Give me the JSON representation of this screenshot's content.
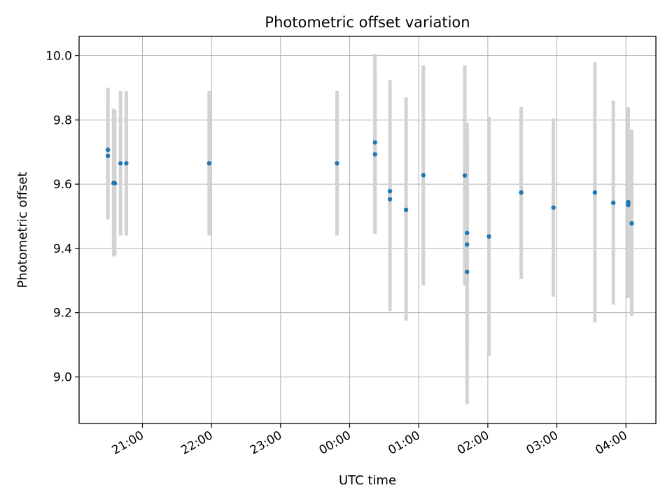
{
  "chart_data": {
    "type": "scatter",
    "title": "Photometric offset variation",
    "xlabel": "UTC time",
    "ylabel": "Photometric offset",
    "x_axis": "time",
    "xlim": [
      "20:05",
      "04:26"
    ],
    "ylim": [
      8.855,
      10.06
    ],
    "x_ticks": [
      "21:00",
      "22:00",
      "23:00",
      "00:00",
      "01:00",
      "02:00",
      "03:00",
      "04:00"
    ],
    "y_ticks": [
      "9.0",
      "9.2",
      "9.4",
      "9.6",
      "9.8",
      "10.0"
    ],
    "grid": true,
    "legend": "none",
    "series": [
      {
        "marker_color": "#1f77b4",
        "error_color": "#d3d3d3",
        "points": [
          {
            "t": "20:30",
            "y": 9.707,
            "lo": 9.51,
            "hi": 9.9
          },
          {
            "t": "20:30",
            "y": 9.688,
            "lo": 9.49,
            "hi": 9.89
          },
          {
            "t": "20:35",
            "y": 9.604,
            "lo": 9.375,
            "hi": 9.835
          },
          {
            "t": "20:36",
            "y": 9.603,
            "lo": 9.38,
            "hi": 9.83
          },
          {
            "t": "20:41",
            "y": 9.665,
            "lo": 9.44,
            "hi": 9.89
          },
          {
            "t": "20:46",
            "y": 9.665,
            "lo": 9.44,
            "hi": 9.89
          },
          {
            "t": "21:58",
            "y": 9.665,
            "lo": 9.44,
            "hi": 9.89
          },
          {
            "t": "23:49",
            "y": 9.665,
            "lo": 9.44,
            "hi": 9.89
          },
          {
            "t": "00:22",
            "y": 9.73,
            "lo": 9.46,
            "hi": 10.005
          },
          {
            "t": "00:22",
            "y": 9.693,
            "lo": 9.445,
            "hi": 9.94
          },
          {
            "t": "00:35",
            "y": 9.578,
            "lo": 9.23,
            "hi": 9.925
          },
          {
            "t": "00:35",
            "y": 9.553,
            "lo": 9.205,
            "hi": 9.9
          },
          {
            "t": "00:49",
            "y": 9.52,
            "lo": 9.175,
            "hi": 9.87
          },
          {
            "t": "01:04",
            "y": 9.628,
            "lo": 9.285,
            "hi": 9.97
          },
          {
            "t": "01:40",
            "y": 9.627,
            "lo": 9.285,
            "hi": 9.97
          },
          {
            "t": "01:42",
            "y": 9.448,
            "lo": 9.105,
            "hi": 9.79
          },
          {
            "t": "01:42",
            "y": 9.412,
            "lo": 9.06,
            "hi": 9.765
          },
          {
            "t": "01:42",
            "y": 9.327,
            "lo": 8.915,
            "hi": 9.74
          },
          {
            "t": "02:01",
            "y": 9.437,
            "lo": 9.065,
            "hi": 9.81
          },
          {
            "t": "02:29",
            "y": 9.574,
            "lo": 9.305,
            "hi": 9.84
          },
          {
            "t": "02:57",
            "y": 9.527,
            "lo": 9.25,
            "hi": 9.805
          },
          {
            "t": "03:33",
            "y": 9.574,
            "lo": 9.17,
            "hi": 9.98
          },
          {
            "t": "03:49",
            "y": 9.542,
            "lo": 9.225,
            "hi": 9.86
          },
          {
            "t": "04:02",
            "y": 9.544,
            "lo": 9.25,
            "hi": 9.84
          },
          {
            "t": "04:02",
            "y": 9.535,
            "lo": 9.245,
            "hi": 9.83
          },
          {
            "t": "04:05",
            "y": 9.478,
            "lo": 9.19,
            "hi": 9.77
          }
        ]
      }
    ]
  }
}
